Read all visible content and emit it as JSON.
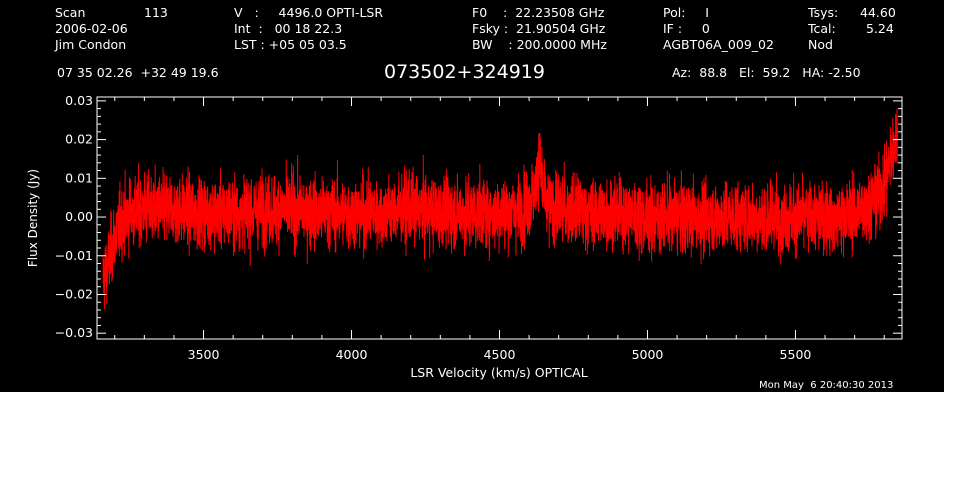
{
  "header": {
    "col1": {
      "scan_label": "Scan",
      "scan_value": "113",
      "date": "2006-02-06",
      "observer": "Jim Condon"
    },
    "col2": {
      "v": "V   :     4496.0 OPTI-LSR",
      "int": "Int  :   00 18 22.3",
      "lst": "LST : +05 05 03.5"
    },
    "col3": {
      "f0": "F0    :  22.23508 GHz",
      "fsky": "Fsky :  21.90504 GHz",
      "bw": "BW    : 200.0000 MHz"
    },
    "col4": {
      "pol": "Pol:     I",
      "if": "IF :     0",
      "project": "AGBT06A_009_02"
    },
    "col5": {
      "tsys_label": "Tsys:",
      "tsys_value": "44.60",
      "tcal_label": "Tcal:",
      "tcal_value": "5.24",
      "mode": "Nod"
    },
    "coords": "07 35 02.26  +32 49 19.6",
    "source": "073502+324919",
    "pointing": "Az:  88.8   El:  59.2   HA: -2.50",
    "timestamp": "Mon May  6 20:40:30 2013"
  },
  "colors": {
    "background": "#000000",
    "trace": "#ff0000",
    "axes": "#ffffff",
    "page": "#ffffff"
  },
  "chart_data": {
    "type": "line",
    "xlabel": "LSR Velocity (km/s) OPTICAL",
    "ylabel": "Flux Density (Jy)",
    "xlim": [
      3140,
      5860
    ],
    "ylim": [
      -0.0315,
      0.031
    ],
    "x_ticks": [
      3500,
      4000,
      4500,
      5000,
      5500
    ],
    "x_tick_labels": [
      "3500",
      "4000",
      "4500",
      "5000",
      "5500"
    ],
    "y_ticks": [
      -0.03,
      -0.02,
      -0.01,
      0.0,
      0.01,
      0.02,
      0.03
    ],
    "y_tick_labels": [
      "−0.03",
      "−0.02",
      "−0.01",
      "0.00",
      "0.01",
      "0.02",
      "0.03"
    ],
    "grid": false,
    "series": [
      {
        "style": "noisy spectrum",
        "x": [
          3160,
          3175,
          3190,
          3205,
          3225,
          3250,
          3300,
          3400,
          3500,
          3600,
          3700,
          3800,
          3900,
          4000,
          4100,
          4200,
          4300,
          4400,
          4500,
          4580,
          4620,
          4635,
          4645,
          4660,
          4700,
          4800,
          4900,
          5000,
          5100,
          5200,
          5300,
          5400,
          5500,
          5600,
          5650,
          5700,
          5740,
          5770,
          5790,
          5805,
          5815,
          5825,
          5835,
          5845
        ],
        "y": [
          -0.016,
          -0.013,
          -0.008,
          -0.004,
          -0.001,
          0.001,
          0.002,
          0.002,
          0.001,
          0.001,
          0.002,
          0.002,
          0.001,
          0.001,
          0.001,
          0.002,
          0.001,
          0.001,
          0.001,
          0.002,
          0.006,
          0.016,
          0.007,
          0.003,
          0.002,
          0.001,
          0.001,
          0.0,
          0.0,
          0.0,
          0.0,
          0.0,
          0.0,
          0.0,
          0.0,
          0.001,
          0.003,
          0.005,
          0.007,
          0.01,
          0.013,
          0.016,
          0.019,
          0.022
        ],
        "noise_rms": 0.0045
      }
    ]
  }
}
